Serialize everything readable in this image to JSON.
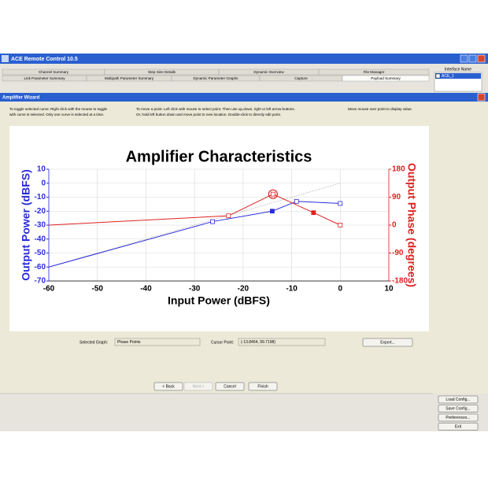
{
  "window": {
    "title": "ACE Remote Control 10.5",
    "tabs_row1": [
      "Channel Summary",
      "Step Size Details",
      "Dynamic Overview",
      "File Manager"
    ],
    "tabs_row2": [
      "Link Parameter Summary",
      "Multipath Parameter Summary",
      "Dynamic Parameter Graphs",
      "Capture",
      "Payload Summary"
    ],
    "interface_header": "Interface Name",
    "interfaces": [
      "ACE_1"
    ],
    "buttons": [
      "Load Config...",
      "Save Config...",
      "Preferences...",
      "Exit"
    ]
  },
  "dialog": {
    "title": "Amplifier Wizard",
    "instructions": [
      [
        "To toggle selected curve:  Right click with the mouse to toggle",
        "with curve is selected.  Only one curve is selected at a time."
      ],
      [
        "To move a point:  Left click with mouse to select point.  Then use up,down, right or left arrow buttons.",
        "Or, hold left button down and move point to new location. Double-click to directly edit point."
      ],
      [
        "Move mouse over point to display value."
      ]
    ],
    "selected_graph_label": "Selected Graph:",
    "selected_graph": "Phase Points",
    "cursor_label": "Cursor Point:",
    "cursor_value": "(-13.8464, 99.7198)",
    "export": "Export...",
    "nav_buttons": [
      "< Back",
      "Next >",
      "Cancel",
      "Finish"
    ]
  },
  "chart_data": {
    "type": "line",
    "title": "Amplifier Characteristics",
    "x_label": "Input Power (dBFS)",
    "y_label": "Output Power (dBFS)",
    "y2_label": "Output Phase (degrees)",
    "xlim": [
      -60,
      10
    ],
    "xticks": [
      -60,
      -50,
      -40,
      -30,
      -20,
      -10,
      0,
      10
    ],
    "ylim": [
      -70,
      10
    ],
    "yticks": [
      -70,
      -60,
      -50,
      -40,
      -30,
      -20,
      -10,
      0,
      10
    ],
    "y2lim": [
      -180,
      180
    ],
    "y2ticks": [
      -180,
      -90,
      0,
      90,
      180
    ],
    "grid": true,
    "series": [
      {
        "color": "#b0b0b0",
        "dashed": true,
        "x": [
          -60,
          0
        ],
        "values": [
          -60,
          0
        ],
        "markers": [
          "none",
          "none"
        ]
      },
      {
        "color": "#2b2bd9",
        "x": [
          -60,
          -26.3,
          -14,
          -9,
          0
        ],
        "values": [
          -60,
          -27.5,
          -20,
          -13,
          -14.5
        ],
        "markers": [
          "none",
          "open",
          "filled",
          "open",
          "open"
        ]
      },
      {
        "color": "#dd2222",
        "axis": "y2",
        "x": [
          -60,
          -23,
          -13.8464,
          -5.5,
          0
        ],
        "values": [
          0,
          30,
          99.7198,
          40,
          0
        ],
        "markers": [
          "none",
          "open",
          "circle",
          "filled",
          "open"
        ]
      }
    ]
  }
}
